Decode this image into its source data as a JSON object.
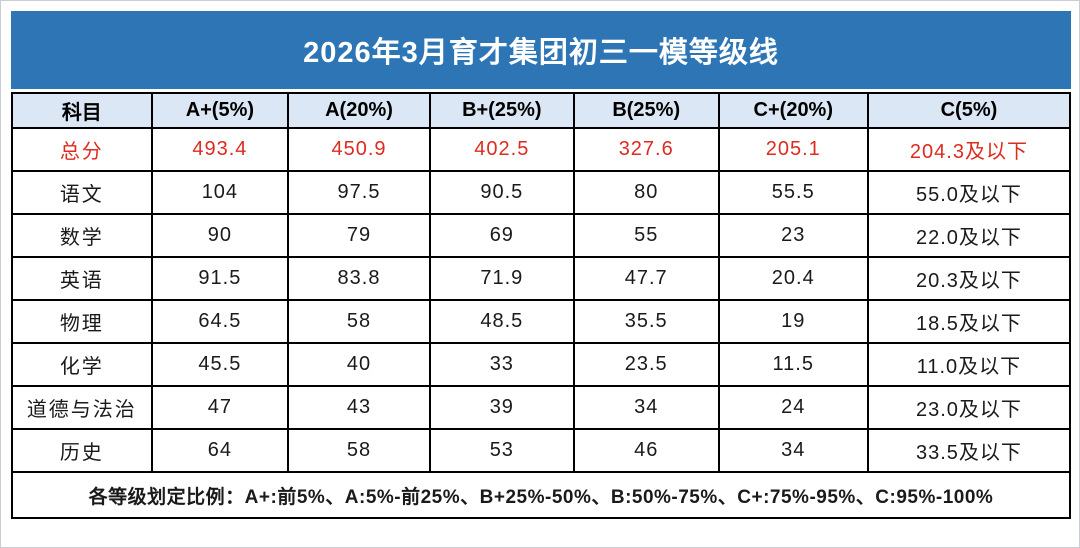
{
  "title": "2026年3月育才集团初三一模等级线",
  "table": {
    "headers": [
      "科目",
      "A+(5%)",
      "A(20%)",
      "B+(25%)",
      "B(25%)",
      "C+(20%)",
      "C(5%)"
    ],
    "rows": [
      {
        "subject": "总分",
        "highlight": true,
        "values": [
          "493.4",
          "450.9",
          "402.5",
          "327.6",
          "205.1",
          "204.3及以下"
        ]
      },
      {
        "subject": "语文",
        "highlight": false,
        "values": [
          "104",
          "97.5",
          "90.5",
          "80",
          "55.5",
          "55.0及以下"
        ]
      },
      {
        "subject": "数学",
        "highlight": false,
        "values": [
          "90",
          "79",
          "69",
          "55",
          "23",
          "22.0及以下"
        ]
      },
      {
        "subject": "英语",
        "highlight": false,
        "values": [
          "91.5",
          "83.8",
          "71.9",
          "47.7",
          "20.4",
          "20.3及以下"
        ]
      },
      {
        "subject": "物理",
        "highlight": false,
        "values": [
          "64.5",
          "58",
          "48.5",
          "35.5",
          "19",
          "18.5及以下"
        ]
      },
      {
        "subject": "化学",
        "highlight": false,
        "values": [
          "45.5",
          "40",
          "33",
          "23.5",
          "11.5",
          "11.0及以下"
        ]
      },
      {
        "subject": "道德与法治",
        "highlight": false,
        "values": [
          "47",
          "43",
          "39",
          "34",
          "24",
          "23.0及以下"
        ]
      },
      {
        "subject": "历史",
        "highlight": false,
        "values": [
          "64",
          "58",
          "53",
          "46",
          "34",
          "33.5及以下"
        ]
      }
    ],
    "footnote": "各等级划定比例：A+:前5%、A:5%-前25%、B+25%-50%、B:50%-75%、C+:75%-95%、C:95%-100%"
  },
  "colors": {
    "title_bg": "#2e75b6",
    "title_text": "#ffffff",
    "header_bg": "#dbe7f4",
    "highlight_text": "#de2b20",
    "body_text": "#1a1a1a",
    "border": "#000000"
  }
}
